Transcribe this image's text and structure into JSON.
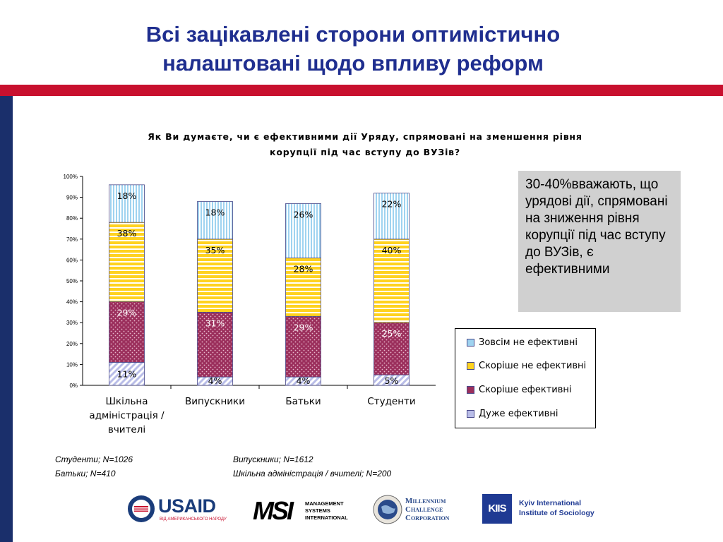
{
  "slide": {
    "title_line1": "Всі зацікавлені сторони оптимістично",
    "title_line2": "налаштовані щодо впливу реформ",
    "callout": "30-40%вважають, що урядові дії, спрямовані на зниження рівня корупції під час вступу до ВУЗів, є ефективними",
    "notes": [
      "Студенти; N=1026",
      "Батьки; N=410",
      "Випускники; N=1612",
      "Шкільна адміністрація / вчителі; N=200"
    ],
    "logos": {
      "usaid": "USAID",
      "usaid_sub": "ВІД АМЕРИКАНСЬКОГО НАРОДУ",
      "msi_mark": "MSI",
      "msi_line1": "MANAGEMENT",
      "msi_line2": "SYSTEMS",
      "msi_line3": "INTERNATIONAL",
      "mcc_line1": "Millennium",
      "mcc_line2": "Challenge",
      "mcc_line3": "Corporation",
      "kiis_mark": "KIIS",
      "kiis_line1": "Kyiv International",
      "kiis_line2": "Institute of Sociology"
    }
  },
  "colors": {
    "title": "#1f2e8f",
    "band_red": "#c8102e",
    "band_blue": "#1a2f6b",
    "light_blue": "#9fd3f0",
    "yellow": "#ffd21f",
    "maroon": "#9b2f5c",
    "lavender": "#b9bde8"
  },
  "chart_data": {
    "type": "bar",
    "stacked": true,
    "title_line1": "Як Ви думаєте, чи є ефективними дії Уряду, спрямовані на зменшення рівня",
    "title_line2": "корупції під час вступу до ВУЗів?",
    "categories": [
      [
        "Шкільна",
        "адміністрація /",
        "вчителі"
      ],
      [
        "Випускники"
      ],
      [
        "Батьки"
      ],
      [
        "Студенти"
      ]
    ],
    "ylim": [
      0,
      100
    ],
    "yticks": [
      "0%",
      "10%",
      "20%",
      "30%",
      "40%",
      "50%",
      "60%",
      "70%",
      "80%",
      "90%",
      "100%"
    ],
    "series": [
      {
        "name": "Дуже ефективні",
        "values": [
          11,
          4,
          4,
          5
        ],
        "labels": [
          "11%",
          "4%",
          "4%",
          "5%"
        ],
        "pattern": "lavender"
      },
      {
        "name": "Скоріше ефективні",
        "values": [
          29,
          31,
          29,
          25
        ],
        "labels": [
          "29%",
          "31%",
          "29%",
          "25%"
        ],
        "pattern": "maroon"
      },
      {
        "name": "Скоріше не ефективні",
        "values": [
          38,
          35,
          28,
          40
        ],
        "labels": [
          "38%",
          "35%",
          "28%",
          "40%"
        ],
        "pattern": "yellow"
      },
      {
        "name": "Зовсім не ефективні",
        "values": [
          18,
          18,
          26,
          22
        ],
        "labels": [
          "18%",
          "18%",
          "26%",
          "22%"
        ],
        "pattern": "light_blue"
      }
    ],
    "legend_order": [
      "Зовсім не ефективні",
      "Скоріше не ефективні",
      "Скоріше ефективні",
      "Дуже ефективні"
    ],
    "legend_position": "right",
    "grid": false
  }
}
